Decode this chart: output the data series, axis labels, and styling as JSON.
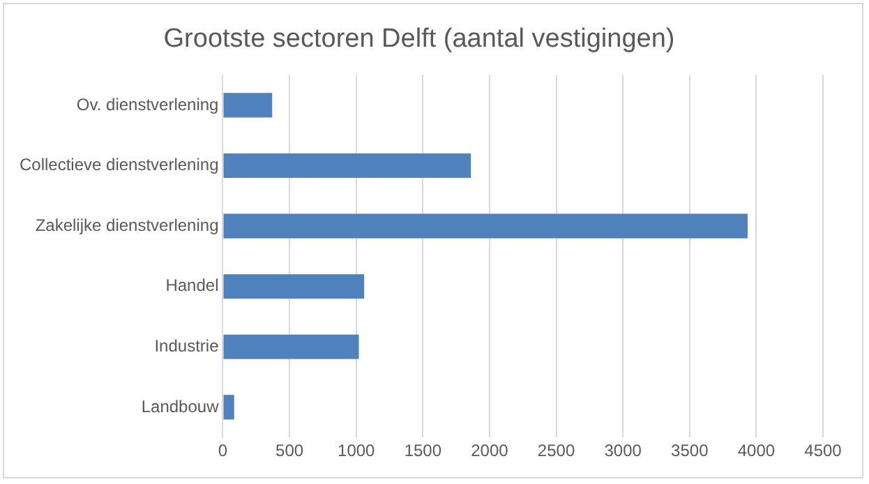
{
  "chart_data": {
    "type": "bar",
    "orientation": "horizontal",
    "title": "Grootste sectoren Delft (aantal vestigingen)",
    "categories": [
      "Ov. dienstverlening",
      "Collectieve dienstverlening",
      "Zakelijke dienstverlening",
      "Handel",
      "Industrie",
      "Landbouw"
    ],
    "values": [
      370,
      1860,
      3935,
      1060,
      1020,
      85
    ],
    "color": "#4f81bd",
    "xlim": [
      0,
      4500
    ],
    "xticks": [
      0,
      500,
      1000,
      1500,
      2000,
      2500,
      3000,
      3500,
      4000,
      4500
    ],
    "grid": "x",
    "legend": false
  }
}
